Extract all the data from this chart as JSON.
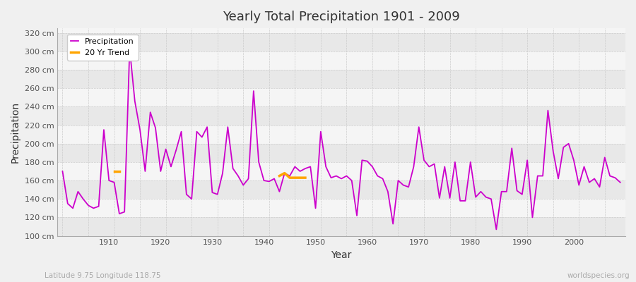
{
  "title": "Yearly Total Precipitation 1901 - 2009",
  "xlabel": "Year",
  "ylabel": "Precipitation",
  "subtitle_left": "Latitude 9.75 Longitude 118.75",
  "subtitle_right": "worldspecies.org",
  "start_year": 1901,
  "end_year": 2009,
  "ylim": [
    100,
    325
  ],
  "yticks": [
    100,
    120,
    140,
    160,
    180,
    200,
    220,
    240,
    260,
    280,
    300,
    320
  ],
  "xticks": [
    1910,
    1920,
    1930,
    1940,
    1950,
    1960,
    1970,
    1980,
    1990,
    2000
  ],
  "precip_color": "#cc00cc",
  "trend_color": "#FFA500",
  "bg_color": "#f0f0f0",
  "plot_bg_color": "#f5f5f5",
  "band_color1": "#f5f5f5",
  "band_color2": "#e8e8e8",
  "grid_color": "#cccccc",
  "precipitation": [
    170,
    135,
    130,
    148,
    140,
    133,
    130,
    132,
    215,
    160,
    158,
    124,
    126,
    303,
    246,
    215,
    170,
    234,
    217,
    170,
    194,
    175,
    193,
    213,
    145,
    140,
    213,
    207,
    218,
    147,
    145,
    168,
    218,
    173,
    165,
    155,
    162,
    257,
    180,
    160,
    159,
    162,
    148,
    168,
    165,
    175,
    170,
    173,
    175,
    130,
    213,
    175,
    163,
    165,
    162,
    165,
    160,
    122,
    182,
    181,
    175,
    165,
    162,
    148,
    113,
    160,
    155,
    153,
    175,
    218,
    182,
    175,
    178,
    141,
    175,
    141,
    180,
    138,
    138,
    180,
    142,
    148,
    142,
    140,
    107,
    148,
    148,
    195,
    149,
    145,
    182,
    120,
    165,
    165,
    236,
    192,
    162,
    196,
    200,
    182,
    155,
    175,
    158,
    162,
    153,
    185,
    165,
    163,
    158
  ],
  "trend_segment1_years": [
    1911,
    1912
  ],
  "trend_segment1_values": [
    170,
    170
  ],
  "trend_segment2_years": [
    1943,
    1944,
    1945,
    1946,
    1947,
    1948
  ],
  "trend_segment2_values": [
    165,
    168,
    163,
    163,
    163,
    163
  ]
}
